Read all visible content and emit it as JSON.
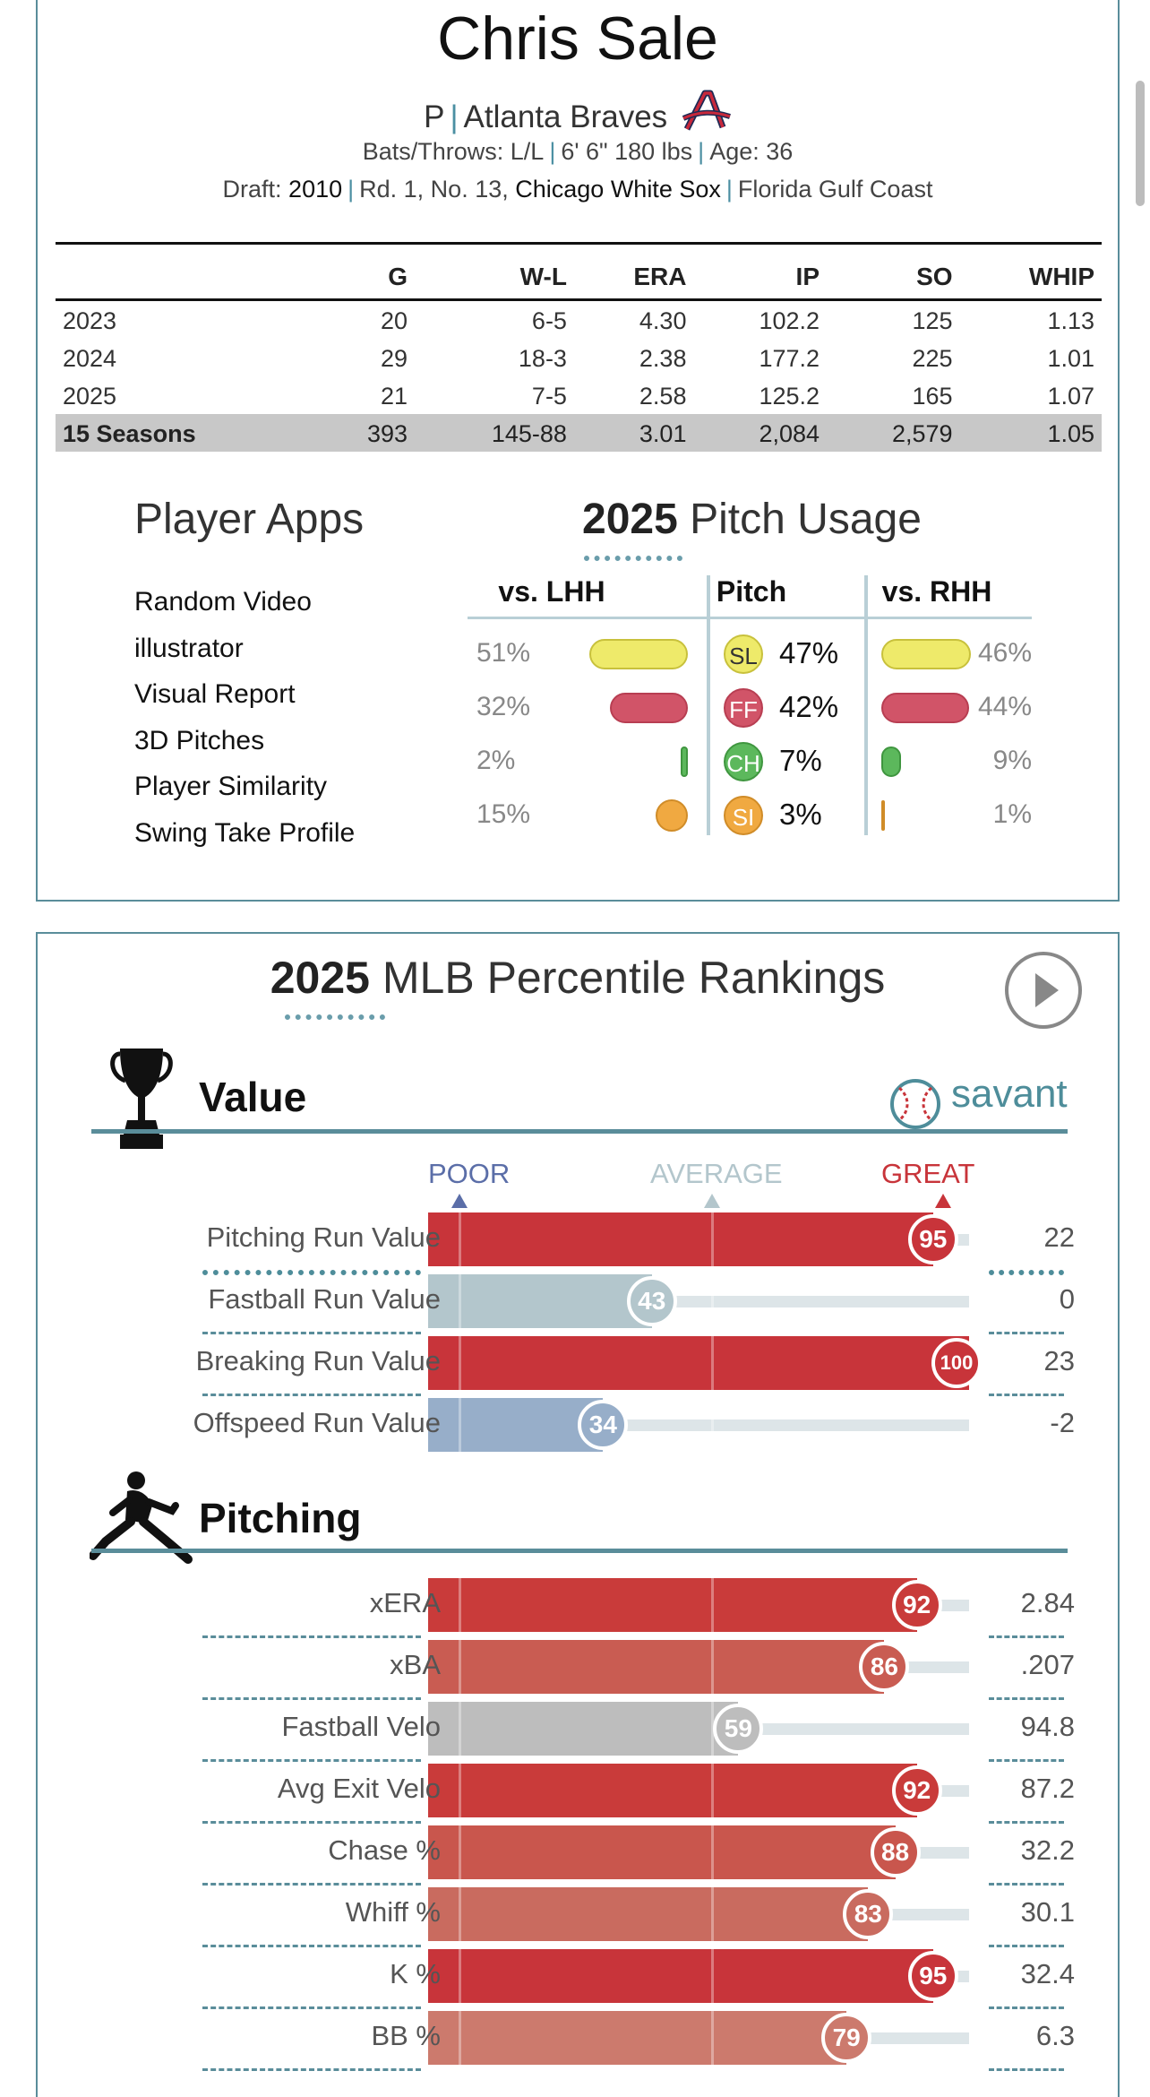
{
  "player": {
    "name": "Chris Sale",
    "position": "P",
    "team": "Atlanta Braves",
    "bats_throws_label": "Bats/Throws:",
    "bats_throws": "L/L",
    "height_weight": "6' 6\" 180 lbs",
    "age_label": "Age:",
    "age": "36",
    "draft_label": "Draft:",
    "draft_year": "2010",
    "draft_pick": "Rd. 1, No. 13,",
    "draft_team": "Chicago White Sox",
    "school": "Florida Gulf Coast"
  },
  "stats_table": {
    "headers": [
      "",
      "G",
      "W-L",
      "ERA",
      "IP",
      "SO",
      "WHIP"
    ],
    "rows": [
      [
        "2023",
        "20",
        "6-5",
        "4.30",
        "102.2",
        "125",
        "1.13"
      ],
      [
        "2024",
        "29",
        "18-3",
        "2.38",
        "177.2",
        "225",
        "1.01"
      ],
      [
        "2025",
        "21",
        "7-5",
        "2.58",
        "125.2",
        "165",
        "1.07"
      ]
    ],
    "total": [
      "15 Seasons",
      "393",
      "145-88",
      "3.01",
      "2,084",
      "2,579",
      "1.05"
    ]
  },
  "player_apps": {
    "title": "Player Apps",
    "items": [
      "Random Video",
      "illustrator",
      "Visual Report",
      "3D Pitches",
      "Player Similarity",
      "Swing Take Profile"
    ]
  },
  "pitch_usage": {
    "year": "2025",
    "title": "Pitch Usage",
    "headers": {
      "lhh": "vs. LHH",
      "pitch": "Pitch",
      "rhh": "vs. RHH"
    },
    "rows": [
      {
        "code": "SL",
        "overall": "47%",
        "lhh": "51%",
        "rhh": "46%",
        "lhh_v": 51,
        "rhh_v": 46,
        "color": "#eeea6a",
        "border": "#c8c13c",
        "text": "#333"
      },
      {
        "code": "FF",
        "overall": "42%",
        "lhh": "32%",
        "rhh": "44%",
        "lhh_v": 32,
        "rhh_v": 44,
        "color": "#d15468",
        "border": "#b83e52",
        "text": "#ffffff"
      },
      {
        "code": "CH",
        "overall": "7%",
        "lhh": "2%",
        "rhh": "9%",
        "lhh_v": 2,
        "rhh_v": 9,
        "color": "#5cb85c",
        "border": "#3f963f",
        "text": "#ffffff"
      },
      {
        "code": "SI",
        "overall": "3%",
        "lhh": "15%",
        "rhh": "1%",
        "lhh_v": 15,
        "rhh_v": 1,
        "color": "#f0a941",
        "border": "#d08c28",
        "text": "#ffffff"
      }
    ]
  },
  "percentile": {
    "year": "2025",
    "title": "MLB Percentile Rankings",
    "savant_label": "savant",
    "scale": {
      "poor": "POOR",
      "average": "AVERAGE",
      "great": "GREAT"
    },
    "value_section": {
      "title": "Value",
      "metrics": [
        {
          "label": "Pitching Run Value",
          "pct": 95,
          "value": "22",
          "color": "#c8343a",
          "emph": true
        },
        {
          "label": "Fastball Run Value",
          "pct": 43,
          "value": "0",
          "color": "#b3c6cc",
          "emph": false
        },
        {
          "label": "Breaking Run Value",
          "pct": 100,
          "value": "23",
          "color": "#c8343a",
          "emph": false
        },
        {
          "label": "Offspeed Run Value",
          "pct": 34,
          "value": "-2",
          "color": "#97aec9",
          "emph": false
        }
      ]
    },
    "pitching_section": {
      "title": "Pitching",
      "metrics": [
        {
          "label": "xERA",
          "pct": 92,
          "value": "2.84",
          "color": "#c93b3a"
        },
        {
          "label": "xBA",
          "pct": 86,
          "value": ".207",
          "color": "#c95c52"
        },
        {
          "label": "Fastball Velo",
          "pct": 59,
          "value": "94.8",
          "color": "#bdbdbd"
        },
        {
          "label": "Avg Exit Velo",
          "pct": 92,
          "value": "87.2",
          "color": "#c93b3a"
        },
        {
          "label": "Chase %",
          "pct": 88,
          "value": "32.2",
          "color": "#c9564d"
        },
        {
          "label": "Whiff %",
          "pct": 83,
          "value": "30.1",
          "color": "#c96b5f"
        },
        {
          "label": "K %",
          "pct": 95,
          "value": "32.4",
          "color": "#c8343a"
        },
        {
          "label": "BB %",
          "pct": 79,
          "value": "6.3",
          "color": "#cc7a6d"
        }
      ]
    }
  }
}
